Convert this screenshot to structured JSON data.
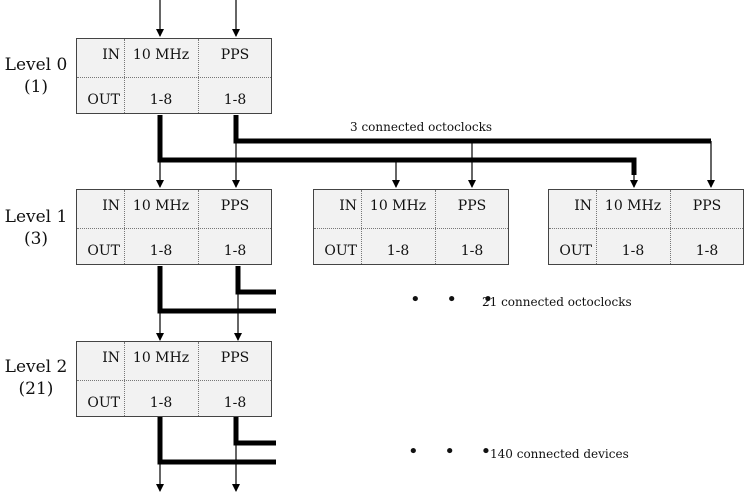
{
  "levels": [
    {
      "name": "Level 0",
      "count": "(1)"
    },
    {
      "name": "Level 1",
      "count": "(3)"
    },
    {
      "name": "Level 2",
      "count": "(21)"
    }
  ],
  "box": {
    "in_label": "IN",
    "out_label": "OUT",
    "col1_header": "10 MHz",
    "col2_header": "PPS",
    "col1_out": "1-8",
    "col2_out": "1-8"
  },
  "annotations": {
    "level0_connected": "3 connected octoclocks",
    "level1_connected": "21 connected octoclocks",
    "level2_connected": "140 connected devices",
    "ellipsis": "• • •"
  }
}
